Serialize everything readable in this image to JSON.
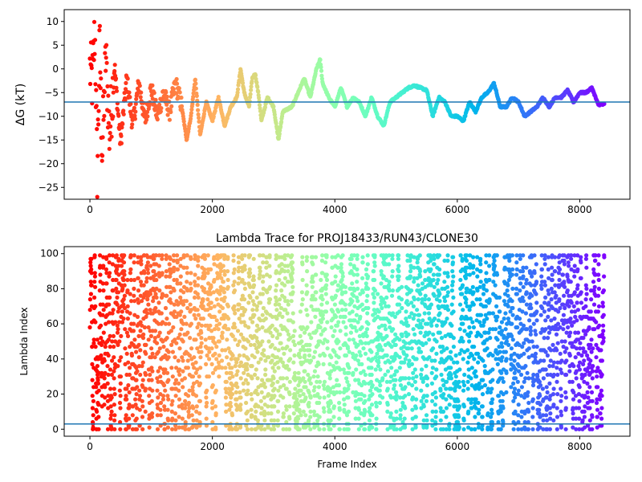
{
  "chart_data": [
    {
      "type": "scatter",
      "title": "",
      "xlabel": "",
      "ylabel": "ΔG (kT)",
      "xlim": [
        -420,
        8820
      ],
      "ylim": [
        -27.5,
        12.5
      ],
      "xticks": [
        0,
        2000,
        4000,
        6000,
        8000
      ],
      "yticks": [
        10,
        5,
        0,
        -5,
        -10,
        -15,
        -20,
        -25
      ],
      "hline": -7,
      "colormap": "rainbow",
      "color_order": "late frames purple, early frames red",
      "x_extent": [
        0,
        8400
      ],
      "series_trace_points": [
        [
          0,
          0
        ],
        [
          40,
          -3
        ],
        [
          80,
          8
        ],
        [
          120,
          -22
        ],
        [
          160,
          5
        ],
        [
          200,
          -18
        ],
        [
          260,
          3
        ],
        [
          320,
          -14
        ],
        [
          400,
          1
        ],
        [
          500,
          -16
        ],
        [
          600,
          -2
        ],
        [
          700,
          -12
        ],
        [
          800,
          -3
        ],
        [
          900,
          -11
        ],
        [
          1000,
          -4
        ],
        [
          1100,
          -10
        ],
        [
          1200,
          -5
        ],
        [
          1300,
          -9
        ],
        [
          1400,
          -3
        ],
        [
          1500,
          -8
        ],
        [
          1580,
          -15
        ],
        [
          1650,
          -10
        ],
        [
          1720,
          -2
        ],
        [
          1800,
          -14
        ],
        [
          1900,
          -7
        ],
        [
          2000,
          -11
        ],
        [
          2100,
          -6
        ],
        [
          2200,
          -12
        ],
        [
          2300,
          -8
        ],
        [
          2400,
          -6
        ],
        [
          2460,
          0
        ],
        [
          2520,
          -5
        ],
        [
          2600,
          -8
        ],
        [
          2650,
          -2
        ],
        [
          2700,
          -1
        ],
        [
          2760,
          -6
        ],
        [
          2800,
          -11
        ],
        [
          2900,
          -6
        ],
        [
          3000,
          -8
        ],
        [
          3080,
          -15
        ],
        [
          3150,
          -9
        ],
        [
          3300,
          -8
        ],
        [
          3400,
          -5
        ],
        [
          3500,
          -2
        ],
        [
          3600,
          -6
        ],
        [
          3700,
          0
        ],
        [
          3760,
          2
        ],
        [
          3800,
          -3
        ],
        [
          3900,
          -6
        ],
        [
          4000,
          -8
        ],
        [
          4100,
          -4
        ],
        [
          4200,
          -8
        ],
        [
          4300,
          -6
        ],
        [
          4400,
          -7
        ],
        [
          4500,
          -10
        ],
        [
          4600,
          -6
        ],
        [
          4700,
          -10
        ],
        [
          4800,
          -12
        ],
        [
          4900,
          -7
        ],
        [
          5000,
          -6
        ],
        [
          5100,
          -5
        ],
        [
          5200,
          -4
        ],
        [
          5300,
          -3.5
        ],
        [
          5400,
          -4
        ],
        [
          5500,
          -4.5
        ],
        [
          5600,
          -10
        ],
        [
          5700,
          -6
        ],
        [
          5800,
          -7
        ],
        [
          5900,
          -10
        ],
        [
          6000,
          -10
        ],
        [
          6100,
          -11
        ],
        [
          6200,
          -7
        ],
        [
          6300,
          -9
        ],
        [
          6400,
          -6
        ],
        [
          6500,
          -5
        ],
        [
          6600,
          -3
        ],
        [
          6700,
          -8
        ],
        [
          6800,
          -8
        ],
        [
          6900,
          -6
        ],
        [
          7000,
          -7
        ],
        [
          7100,
          -10
        ],
        [
          7200,
          -9
        ],
        [
          7300,
          -8
        ],
        [
          7400,
          -6
        ],
        [
          7500,
          -8
        ],
        [
          7600,
          -6
        ],
        [
          7700,
          -6
        ],
        [
          7800,
          -4.5
        ],
        [
          7900,
          -7
        ],
        [
          8000,
          -5
        ],
        [
          8100,
          -5
        ],
        [
          8200,
          -4
        ],
        [
          8300,
          -7.5
        ],
        [
          8400,
          -7.5
        ]
      ]
    },
    {
      "type": "scatter",
      "title": "Lambda Trace for PROJ18433/RUN43/CLONE30",
      "xlabel": "Frame Index",
      "ylabel": "Lambda Index",
      "xlim": [
        -420,
        8820
      ],
      "ylim": [
        -4,
        104
      ],
      "xticks": [
        0,
        2000,
        4000,
        6000,
        8000
      ],
      "yticks": [
        0,
        20,
        40,
        60,
        80,
        100
      ],
      "hline": 3,
      "colormap": "rainbow",
      "value_range": [
        0,
        99
      ],
      "x_extent": [
        0,
        8400
      ]
    }
  ],
  "ticks": {
    "x": [
      "0",
      "2000",
      "4000",
      "6000",
      "8000"
    ],
    "top_y": [
      "10",
      "5",
      "0",
      "−5",
      "−10",
      "−15",
      "−20",
      "−25"
    ],
    "bottom_y": [
      "0",
      "20",
      "40",
      "60",
      "80",
      "100"
    ]
  },
  "colors": {
    "hline": "#1f77b4",
    "axes": "#000000"
  }
}
